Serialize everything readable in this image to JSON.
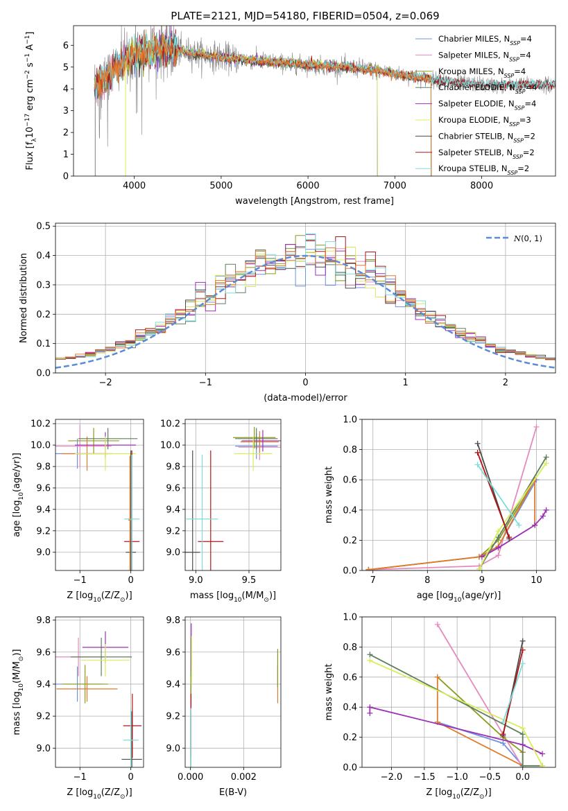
{
  "figure_title": "PLATE=2121, MJD=54180, FIBERID=0504, z=0.069",
  "colors": {
    "Chabrier MILES": "#6f8fe0",
    "Salpeter MILES": "#e58abf",
    "Kroupa MILES": "#8c9a1b",
    "Chabrier ELODIE": "#5b7f5b",
    "Salpeter ELODIE": "#9b2fb6",
    "Kroupa ELODIE": "#d9ec5a",
    "Chabrier STELIB": "#4a4a4a",
    "Salpeter STELIB": "#b01515",
    "Kroupa STELIB": "#7fdcdc",
    "orange": "#e07a2c",
    "data": "#808080"
  },
  "chart_data": [
    {
      "id": "spectrum",
      "type": "line",
      "xlabel": "wavelength [Angstrom, rest frame]",
      "xlim": [
        3300,
        8850
      ],
      "ylim": [
        0,
        6.9
      ],
      "xticks": [
        4000,
        5000,
        6000,
        7000,
        8000
      ],
      "yticks": [
        0,
        1,
        2,
        3,
        4,
        5,
        6
      ],
      "legend": [
        "Chabrier MILES, N_SSP=4",
        "Salpeter MILES, N_SSP=4",
        "Kroupa MILES, N_SSP=4",
        "Chabrier ELODIE, N_SSP=4",
        "Salpeter ELODIE, N_SSP=4",
        "Kroupa ELODIE, N_SSP=3",
        "Chabrier STELIB, N_SSP=2",
        "Salpeter STELIB, N_SSP=2",
        "Kroupa STELIB, N_SSP=2"
      ],
      "legend_position": "upper-right",
      "continuum": {
        "x": [
          3550,
          3650,
          3800,
          4000,
          4300,
          4600,
          5000,
          5400,
          5800,
          6200,
          6600,
          7000,
          7400,
          7800,
          8200,
          8600
        ],
        "y": [
          4.2,
          4.4,
          5.0,
          5.6,
          5.85,
          5.7,
          5.45,
          5.3,
          5.15,
          5.05,
          4.95,
          4.7,
          4.45,
          4.25,
          4.15,
          4.2
        ]
      },
      "model_xrange": {
        "MILES": [
          3540,
          7420
        ],
        "ELODIE": [
          3900,
          6800
        ],
        "STELIB": [
          3540,
          8850
        ]
      }
    },
    {
      "id": "residuals",
      "type": "bar",
      "xlabel": "(data-model)/error",
      "ylabel": "Normed distribution",
      "xlim": [
        -2.5,
        2.5
      ],
      "ylim": [
        0,
        0.51
      ],
      "xticks": [
        -2,
        -1,
        0,
        1,
        2
      ],
      "yticks": [
        0.0,
        0.1,
        0.2,
        0.3,
        0.4,
        0.5
      ],
      "legend": [
        "N(0,1)"
      ],
      "bin_width": 0.1
    },
    {
      "id": "age-vs-Z",
      "type": "scatter",
      "xlabel": "Z [log10(Z/Z_sun)]",
      "ylabel": "age [log10(age/yr)]",
      "xlim": [
        -1.48,
        0.25
      ],
      "ylim": [
        8.83,
        10.24
      ],
      "xticks": [
        -1,
        0
      ],
      "yticks": [
        9.0,
        9.2,
        9.4,
        9.6,
        9.8,
        10.0,
        10.2
      ],
      "points": [
        {
          "s": "Chabrier MILES",
          "x": -1.05,
          "y": 9.92,
          "xe": 0.6,
          "ye": 0.14
        },
        {
          "s": "Salpeter MILES",
          "x": -1.0,
          "y": 9.99,
          "xe": 0.62,
          "ye": 0.2
        },
        {
          "s": "Kroupa MILES",
          "x": -0.73,
          "y": 10.04,
          "xe": 0.5,
          "ye": 0.12
        },
        {
          "s": "orange",
          "x": -0.86,
          "y": 9.92,
          "xe": 0.5,
          "ye": 0.16
        },
        {
          "s": "Chabrier ELODIE",
          "x": -0.45,
          "y": 10.06,
          "xe": 0.58,
          "ye": 0.1
        },
        {
          "s": "Salpeter ELODIE",
          "x": -0.5,
          "y": 10.0,
          "xe": 0.6,
          "ye": 0.12
        },
        {
          "s": "Kroupa ELODIE",
          "x": -0.5,
          "y": 9.92,
          "xe": 0.6,
          "ye": 0.16
        },
        {
          "s": "Chabrier STELIB",
          "x": 0.0,
          "y": 9.0,
          "xe": 0.1,
          "ye": 0.95
        },
        {
          "s": "Salpeter STELIB",
          "x": 0.02,
          "y": 9.1,
          "xe": 0.15,
          "ye": 0.85
        },
        {
          "s": "Kroupa STELIB",
          "x": 0.02,
          "y": 9.31,
          "xe": 0.15,
          "ye": 0.6
        },
        {
          "s": "orange",
          "x": -0.02,
          "y": 9.3,
          "xe": 0.03,
          "ye": 0.6
        }
      ]
    },
    {
      "id": "age-vs-mass",
      "type": "scatter",
      "xlabel": "mass [log10(M/M_sun)]",
      "xlim": [
        8.9,
        9.8
      ],
      "ylim": [
        8.83,
        10.24
      ],
      "xticks": [
        9.0,
        9.5
      ],
      "yticks": [
        9.0,
        9.2,
        9.4,
        9.6,
        9.8,
        10.0,
        10.2
      ],
      "points": [
        {
          "s": "Chabrier MILES",
          "x": 9.57,
          "y": 9.99,
          "xe": 0.2,
          "ye": 0.12
        },
        {
          "s": "Salpeter MILES",
          "x": 9.6,
          "y": 9.98,
          "xe": 0.2,
          "ye": 0.12
        },
        {
          "s": "Kroupa MILES",
          "x": 9.55,
          "y": 10.07,
          "xe": 0.2,
          "ye": 0.1
        },
        {
          "s": "orange",
          "x": 9.6,
          "y": 10.03,
          "xe": 0.18,
          "ye": 0.1
        },
        {
          "s": "Chabrier ELODIE",
          "x": 9.57,
          "y": 10.06,
          "xe": 0.2,
          "ye": 0.1
        },
        {
          "s": "Salpeter ELODIE",
          "x": 9.63,
          "y": 10.04,
          "xe": 0.2,
          "ye": 0.1
        },
        {
          "s": "Kroupa ELODIE",
          "x": 9.54,
          "y": 9.92,
          "xe": 0.18,
          "ye": 0.16
        },
        {
          "s": "Chabrier STELIB",
          "x": 8.97,
          "y": 9.0,
          "xe": 0.07,
          "ye": 0.95
        },
        {
          "s": "Salpeter STELIB",
          "x": 9.14,
          "y": 9.1,
          "xe": 0.12,
          "ye": 0.85
        },
        {
          "s": "Kroupa STELIB",
          "x": 9.06,
          "y": 9.31,
          "xe": 0.15,
          "ye": 0.6
        }
      ]
    },
    {
      "id": "weight-vs-age",
      "type": "line",
      "xlabel": "age [log10(age/yr)]",
      "ylabel": "mass weight",
      "xlim": [
        6.8,
        10.35
      ],
      "ylim": [
        0,
        1.0
      ],
      "xticks": [
        7,
        8,
        9,
        10
      ],
      "yticks": [
        0.0,
        0.2,
        0.4,
        0.6,
        0.8,
        1.0
      ],
      "series": [
        {
          "s": "Chabrier MILES",
          "x": [
            6.92,
            8.95,
            9.3,
            10.0
          ],
          "y": [
            0.005,
            0.09,
            0.16,
            0.6
          ]
        },
        {
          "s": "Salpeter MILES",
          "x": [
            6.92,
            8.95,
            9.3,
            10.0
          ],
          "y": [
            0.005,
            0.03,
            0.1,
            0.95
          ]
        },
        {
          "s": "Kroupa MILES",
          "x": [
            6.92,
            8.95,
            9.3,
            9.97
          ],
          "y": [
            0.005,
            0.09,
            0.2,
            0.6
          ]
        },
        {
          "s": "orange",
          "x": [
            6.92,
            8.95,
            9.3,
            9.97,
            9.97
          ],
          "y": [
            0.005,
            0.09,
            0.16,
            0.6,
            0.3
          ]
        },
        {
          "s": "Chabrier ELODIE",
          "x": [
            8.95,
            9.3,
            10.18
          ],
          "y": [
            0.01,
            0.22,
            0.75
          ]
        },
        {
          "s": "Salpeter ELODIE",
          "x": [
            9.0,
            9.3,
            9.97,
            10.12,
            10.18
          ],
          "y": [
            0.09,
            0.15,
            0.3,
            0.36,
            0.4
          ]
        },
        {
          "s": "Kroupa ELODIE",
          "x": [
            8.95,
            9.3,
            10.18
          ],
          "y": [
            0.01,
            0.26,
            0.71
          ]
        },
        {
          "s": "Chabrier STELIB",
          "x": [
            8.92,
            9.5
          ],
          "y": [
            0.84,
            0.21
          ]
        },
        {
          "s": "Salpeter STELIB",
          "x": [
            8.92,
            9.5
          ],
          "y": [
            0.78,
            0.22
          ]
        },
        {
          "s": "Kroupa STELIB",
          "x": [
            8.92,
            9.68
          ],
          "y": [
            0.7,
            0.3
          ]
        }
      ]
    },
    {
      "id": "mass-vs-Z",
      "type": "scatter",
      "xlabel": "Z [log10(Z/Z_sun)]",
      "ylabel": "mass [log10(M/M_sun)]",
      "xlim": [
        -1.48,
        0.25
      ],
      "ylim": [
        8.88,
        9.82
      ],
      "xticks": [
        -1,
        0
      ],
      "yticks": [
        9.0,
        9.2,
        9.4,
        9.6,
        9.8
      ],
      "points": [
        {
          "s": "Chabrier MILES",
          "x": -1.05,
          "y": 9.4,
          "xe": 0.5,
          "ye": 0.11
        },
        {
          "s": "Salpeter MILES",
          "x": -1.03,
          "y": 9.57,
          "xe": 0.5,
          "ye": 0.12
        },
        {
          "s": "Kroupa MILES",
          "x": -0.9,
          "y": 9.4,
          "xe": 0.45,
          "ye": 0.12
        },
        {
          "s": "orange",
          "x": -0.86,
          "y": 9.37,
          "xe": 0.6,
          "ye": 0.08
        },
        {
          "s": "Chabrier ELODIE",
          "x": -0.58,
          "y": 9.57,
          "xe": 0.6,
          "ye": 0.12
        },
        {
          "s": "Salpeter ELODIE",
          "x": -0.5,
          "y": 9.63,
          "xe": 0.45,
          "ye": 0.1
        },
        {
          "s": "Kroupa ELODIE",
          "x": -0.5,
          "y": 9.55,
          "xe": 0.48,
          "ye": 0.1
        },
        {
          "s": "Chabrier STELIB",
          "x": 0.02,
          "y": 8.93,
          "xe": 0.2,
          "ye": 0.3
        },
        {
          "s": "Salpeter STELIB",
          "x": 0.03,
          "y": 9.14,
          "xe": 0.18,
          "ye": 0.2
        },
        {
          "s": "Kroupa STELIB",
          "x": 0.0,
          "y": 9.05,
          "xe": 0.15,
          "ye": 0.2
        }
      ]
    },
    {
      "id": "mass-vs-ebv",
      "type": "scatter",
      "xlabel": "E(B-V)",
      "xlim": [
        -0.0002,
        0.0034
      ],
      "ylim": [
        8.88,
        9.82
      ],
      "xticks": [
        0.0,
        0.002
      ],
      "xtick_labels": [
        "0.000",
        "0.002"
      ],
      "yticks": [
        9.0,
        9.2,
        9.4,
        9.6,
        9.8
      ],
      "points": [
        {
          "s": "Chabrier MILES",
          "x": 2e-05,
          "y": 9.4,
          "ye": 0.15
        },
        {
          "s": "Salpeter MILES",
          "x": 2e-05,
          "y": 9.57,
          "ye": 0.12
        },
        {
          "s": "Kroupa MILES",
          "x": 2e-05,
          "y": 9.5,
          "ye": 0.2
        },
        {
          "s": "Chabrier ELODIE",
          "x": 2e-05,
          "y": 9.57,
          "ye": 0.12
        },
        {
          "s": "Salpeter ELODIE",
          "x": 3e-05,
          "y": 9.63,
          "ye": 0.15
        },
        {
          "s": "Kroupa ELODIE",
          "x": 4e-05,
          "y": 9.55,
          "ye": 0.15
        },
        {
          "s": "Chabrier STELIB",
          "x": 2e-05,
          "y": 8.93,
          "ye": 0.3
        },
        {
          "s": "Salpeter STELIB",
          "x": 2e-05,
          "y": 9.14,
          "ye": 0.2
        },
        {
          "s": "Kroupa STELIB",
          "x": 2e-05,
          "y": 9.05,
          "ye": 0.2
        },
        {
          "s": "orange",
          "x": 0.00328,
          "y": 9.4,
          "ye": 0.12
        },
        {
          "s": "Kroupa MILES",
          "x": 0.00328,
          "y": 9.5,
          "ye": 0.12
        }
      ]
    },
    {
      "id": "weight-vs-Z",
      "type": "line",
      "xlabel": "Z [log10(Z/Z_sun)]",
      "ylabel": "mass weight",
      "xlim": [
        -2.45,
        0.5
      ],
      "ylim": [
        0,
        1.0
      ],
      "xticks": [
        -2.0,
        -1.5,
        -1.0,
        -0.5,
        0.0
      ],
      "xtick_labels": [
        "−2.0",
        "−1.5",
        "−1.0",
        "−0.5",
        "0.0"
      ],
      "yticks": [
        0.0,
        0.2,
        0.4,
        0.6,
        0.8,
        1.0
      ],
      "series": [
        {
          "s": "Chabrier MILES",
          "x": [
            -1.3,
            -0.3,
            0.0
          ],
          "y": [
            0.3,
            0.16,
            0.01
          ]
        },
        {
          "s": "Salpeter MILES",
          "x": [
            -1.3,
            -0.3,
            0.0
          ],
          "y": [
            0.95,
            0.22,
            0.0
          ]
        },
        {
          "s": "Kroupa MILES",
          "x": [
            -1.3,
            -0.3,
            0.0
          ],
          "y": [
            0.6,
            0.2,
            0.1
          ]
        },
        {
          "s": "orange",
          "x": [
            -1.3,
            -1.3,
            0.0,
            0.0
          ],
          "y": [
            0.6,
            0.3,
            0.01,
            0.1
          ]
        },
        {
          "s": "Chabrier ELODIE",
          "x": [
            -2.33,
            0.0,
            0.0,
            0.3
          ],
          "y": [
            0.75,
            0.22,
            0.01,
            0.01
          ]
        },
        {
          "s": "Salpeter ELODIE",
          "x": [
            -2.33,
            -2.33,
            0.0,
            0.3
          ],
          "y": [
            0.36,
            0.4,
            0.15,
            0.09
          ]
        },
        {
          "s": "Kroupa ELODIE",
          "x": [
            -2.33,
            0.0,
            0.3
          ],
          "y": [
            0.71,
            0.26,
            0.01
          ]
        },
        {
          "s": "Chabrier STELIB",
          "x": [
            -0.3,
            0.0
          ],
          "y": [
            0.21,
            0.84
          ]
        },
        {
          "s": "Salpeter STELIB",
          "x": [
            -0.3,
            0.0
          ],
          "y": [
            0.22,
            0.78
          ]
        },
        {
          "s": "Kroupa STELIB",
          "x": [
            -0.3,
            0.0
          ],
          "y": [
            0.3,
            0.69
          ]
        }
      ]
    }
  ]
}
